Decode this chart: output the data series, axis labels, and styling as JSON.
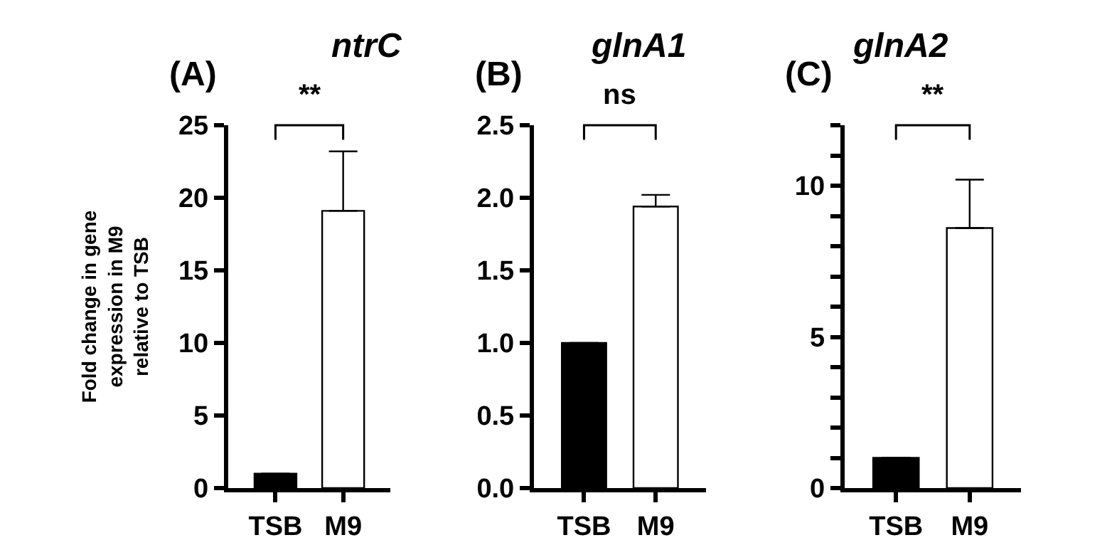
{
  "chart_data": [
    {
      "type": "bar",
      "title": "ntrC",
      "ylabel": "Fold change in gene expression in M9 relative to TSB",
      "annotations": [
        "(A)",
        "**"
      ],
      "categories": [
        "TSB",
        "M9"
      ],
      "values": [
        1,
        19.1
      ],
      "colors": [
        "#000000",
        "#ffffff"
      ],
      "errors": [
        null,
        [
          19.1,
          23.2
        ]
      ],
      "ylim": [
        0,
        25
      ],
      "yticks": [
        0,
        5,
        10,
        15,
        20,
        25
      ]
    },
    {
      "type": "bar",
      "title": "glnA1",
      "annotations": [
        "(B)",
        "ns"
      ],
      "categories": [
        "TSB",
        "M9"
      ],
      "values": [
        1.0,
        1.94
      ],
      "colors": [
        "#000000",
        "#ffffff"
      ],
      "errors": [
        null,
        [
          1.94,
          2.02
        ]
      ],
      "ylim": [
        0,
        2.5
      ],
      "yticks": [
        {
          "value": 0,
          "label": "0.0"
        },
        0.5,
        {
          "value": 1,
          "label": "1.0"
        },
        1.5,
        {
          "value": 2,
          "label": "2.0"
        },
        2.5
      ]
    },
    {
      "type": "bar",
      "title": "glnA2",
      "annotations": [
        "(C)",
        "**"
      ],
      "categories": [
        "TSB",
        "M9"
      ],
      "values": [
        1,
        8.6
      ],
      "colors": [
        "#000000",
        "#ffffff"
      ],
      "errors": [
        null,
        [
          8.6,
          10.2
        ]
      ],
      "ylim": [
        0,
        12
      ],
      "yticks": [
        0,
        {
          "value": 1,
          "label": null
        },
        {
          "value": 2,
          "label": null
        },
        {
          "value": 3,
          "label": null
        },
        {
          "value": 4,
          "label": null
        },
        5,
        {
          "value": 6,
          "label": null
        },
        {
          "value": 7,
          "label": null
        },
        {
          "value": 8,
          "label": null
        },
        {
          "value": 9,
          "label": null
        },
        10,
        {
          "value": 11,
          "label": null
        },
        {
          "value": 12,
          "label": null
        }
      ]
    }
  ]
}
